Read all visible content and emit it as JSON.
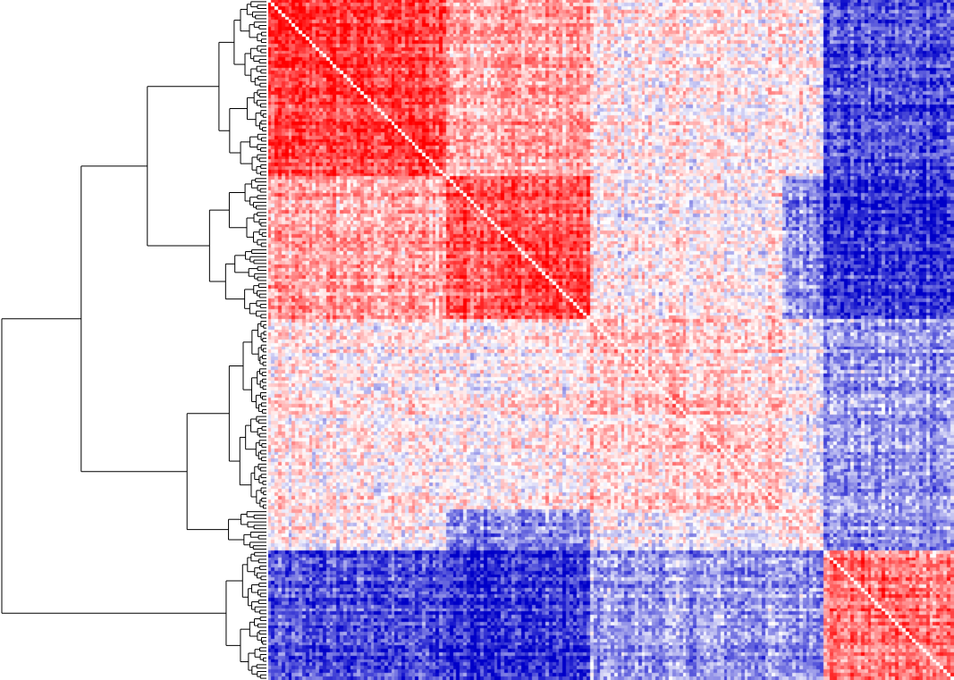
{
  "chart_data": {
    "type": "heatmap",
    "title": "",
    "xlabel": "",
    "ylabel": "",
    "n_items": 200,
    "value_range": [
      -1,
      1
    ],
    "colormap": {
      "low": "#0000c8",
      "mid": "#ffffff",
      "high": "#ff0000"
    },
    "dendrogram": {
      "side": "left",
      "linkage": "hierarchical"
    },
    "clusters": [
      {
        "start": 0,
        "end": 52,
        "within": 0.7
      },
      {
        "start": 52,
        "end": 94,
        "within": 0.65
      },
      {
        "start": 94,
        "end": 150,
        "within": 0.15
      },
      {
        "start": 150,
        "end": 162,
        "within": 0.1
      },
      {
        "start": 162,
        "end": 200,
        "within": 0.5
      }
    ],
    "between_clusters": [
      [
        0.7,
        0.35,
        0.05,
        0.05,
        -0.7
      ],
      [
        0.35,
        0.65,
        0.05,
        -0.4,
        -0.8
      ],
      [
        0.05,
        0.05,
        0.15,
        0.0,
        -0.4
      ],
      [
        0.05,
        -0.4,
        0.0,
        0.1,
        -0.4
      ],
      [
        -0.7,
        -0.8,
        -0.4,
        -0.4,
        0.5
      ]
    ],
    "merge_heights": [
      1.0,
      0.7,
      0.45,
      0.3,
      0.25
    ]
  }
}
